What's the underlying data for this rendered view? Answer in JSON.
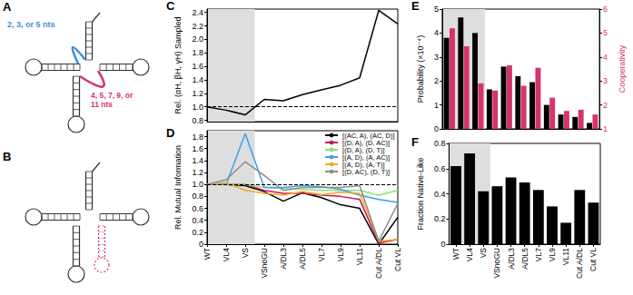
{
  "chart_data": [
    {
      "panel": "C",
      "type": "line",
      "categories": [
        "WT",
        "VL4",
        "VS",
        "VSnoGU",
        "A/DL3",
        "A/DL5",
        "VL7",
        "VL9",
        "VL11",
        "Cut A/DL",
        "Cut VL"
      ],
      "y_label": "Rel. (αH, βH, γH) Sampled",
      "ylim": [
        0.78,
        2.45
      ],
      "yticks": [
        0.8,
        {
          "value": 1,
          "label": "1.0"
        },
        1.2,
        1.4,
        1.6,
        1.8,
        {
          "value": 2,
          "label": "2.0"
        },
        2.2,
        2.4
      ],
      "tick_labels": "y",
      "reference_line": 1,
      "shaded_categories": [
        "WT",
        "VL4",
        "VS"
      ],
      "color": "#000000",
      "values": [
        1.0,
        0.95,
        0.88,
        1.11,
        1.09,
        1.18,
        1.25,
        1.32,
        1.43,
        2.43,
        2.23
      ]
    },
    {
      "panel": "D",
      "type": "line",
      "categories": [
        "WT",
        "VL4",
        "VS",
        "VSnoGU",
        "A/DL3",
        "A/DL5",
        "VL7",
        "VL9",
        "VL11",
        "Cut A/DL",
        "Cut VL"
      ],
      "y_label": "Rel. Mutual Information",
      "ylim": [
        0,
        1.9
      ],
      "yticks": [
        0,
        0.2,
        0.4,
        0.6,
        0.8,
        {
          "value": 1,
          "label": "1.0"
        },
        1.2,
        1.4,
        1.6,
        1.8
      ],
      "reference_line": 1,
      "shaded_categories": [
        "WT",
        "VL4",
        "VS"
      ],
      "legend": "top-right",
      "series": [
        {
          "name": "[(AC, A), (AC, D)]",
          "color": "#000000",
          "values": [
            1.0,
            1.0,
            0.98,
            0.88,
            0.72,
            0.86,
            0.78,
            0.66,
            0.6,
            0.0,
            0.45
          ]
        },
        {
          "name": "[(D, A), (D, AC)]",
          "color": "#c2185b",
          "values": [
            1.0,
            1.0,
            1.0,
            0.9,
            0.85,
            0.85,
            0.82,
            0.8,
            0.75,
            0.02,
            0.08
          ]
        },
        {
          "name": "[(D, A), (D, T)]",
          "color": "#8fe07a",
          "values": [
            1.0,
            1.0,
            1.0,
            0.95,
            0.93,
            0.92,
            0.9,
            0.9,
            0.9,
            0.82,
            0.9
          ]
        },
        {
          "name": "[(A, D), (A, AC)]",
          "color": "#3aa0e8",
          "values": [
            1.0,
            1.0,
            1.85,
            0.95,
            0.95,
            0.98,
            0.96,
            0.92,
            0.82,
            0.75,
            0.7
          ]
        },
        {
          "name": "[(A, D), (A, T)]",
          "color": "#f5a623",
          "values": [
            1.0,
            1.03,
            0.9,
            0.85,
            0.82,
            0.88,
            0.83,
            0.87,
            0.85,
            0.05,
            0.08
          ]
        },
        {
          "name": "[(D, AC), (D, T)]",
          "color": "#8c8c8c",
          "values": [
            1.0,
            1.08,
            1.38,
            1.15,
            0.9,
            0.95,
            0.95,
            0.95,
            0.98,
            0.05,
            0.68
          ]
        }
      ]
    },
    {
      "panel": "E",
      "type": "bar",
      "categories": [
        "WT",
        "VL4",
        "VS",
        "VSnoGU",
        "A/DL3",
        "A/DL5",
        "VL7",
        "VL9",
        "VL11",
        "Cut A/DL",
        "Cut VL"
      ],
      "y_label": "Probability (×10⁻⁴)",
      "y2_label": "Cooperativity",
      "ylim": [
        0,
        5
      ],
      "yticks": [
        0,
        1,
        2,
        3,
        4,
        5
      ],
      "y2lim": [
        1,
        6
      ],
      "y2ticks": [
        1,
        2,
        3,
        4,
        5,
        6
      ],
      "tick_labels": "y",
      "shaded_categories": [
        "WT",
        "VL4",
        "VS"
      ],
      "series": [
        {
          "color": "#000000",
          "values": [
            3.8,
            4.65,
            4.0,
            1.65,
            2.6,
            2.2,
            1.95,
            1.0,
            0.6,
            0.5,
            0.25
          ]
        },
        {
          "color": "#d6336c",
          "axis": "y2",
          "values": [
            5.2,
            4.45,
            2.9,
            2.6,
            3.65,
            2.8,
            3.55,
            2.3,
            1.75,
            1.8,
            1.6
          ]
        }
      ]
    },
    {
      "panel": "F",
      "type": "bar",
      "categories": [
        "WT",
        "VL4",
        "VS",
        "VSnoGU",
        "A/DL3",
        "A/DL5",
        "VL7",
        "VL9",
        "VL11",
        "Cut A/DL",
        "Cut VL"
      ],
      "y_label": "Fraction Native-Like",
      "ylim": [
        0,
        0.8
      ],
      "yticks": [
        0,
        0.2,
        0.4,
        0.6,
        0.8
      ],
      "shaded_categories": [
        "WT",
        "VL4",
        "VS"
      ],
      "color": "#000000",
      "values": [
        0.62,
        0.72,
        0.42,
        0.46,
        0.53,
        0.49,
        0.43,
        0.3,
        0.17,
        0.43,
        0.33
      ]
    }
  ],
  "diagrams": [
    {
      "panel": "A",
      "annotations": [
        {
          "text": "2, 3, or 5 nts",
          "color": "#3b8fd9"
        },
        {
          "text": "4, 5, 7, 9, or 11 nts",
          "color": "#d6336c"
        }
      ]
    },
    {
      "panel": "B",
      "annotations": []
    }
  ]
}
